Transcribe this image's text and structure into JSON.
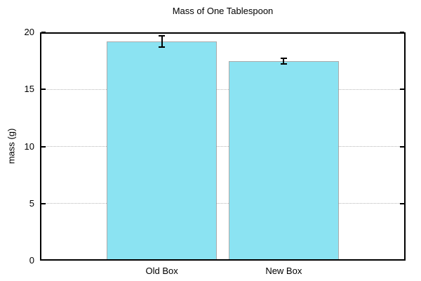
{
  "title": "Mass of One Tablespoon",
  "y_axis_label": "mass (g)",
  "colors": {
    "bar_fill": "#8BE3F2",
    "bar_border": "#ABABAB",
    "grid": "#B8B8B8",
    "axis": "#000000",
    "background": "#FFFFFF",
    "error_bar": "#000000"
  },
  "chart_data": {
    "type": "bar",
    "title": "Mass of One Tablespoon",
    "xlabel": "",
    "ylabel": "mass (g)",
    "categories": [
      "Old Box",
      "New Box"
    ],
    "values": [
      19.2,
      17.5
    ],
    "error_bars": [
      0.5,
      0.25
    ],
    "ylim": [
      0,
      20
    ],
    "yticks": [
      0,
      5,
      10,
      15,
      20
    ],
    "ytick_labels": [
      "0",
      "5",
      "10",
      "15",
      "20"
    ],
    "grid": "horizontal dotted lines at y ticks",
    "tick_style": "inward ticks mirrored on left and right borders",
    "legend_position": "none",
    "bar_color": "#8BE3F2",
    "bar_border_color": "#ABABAB"
  }
}
